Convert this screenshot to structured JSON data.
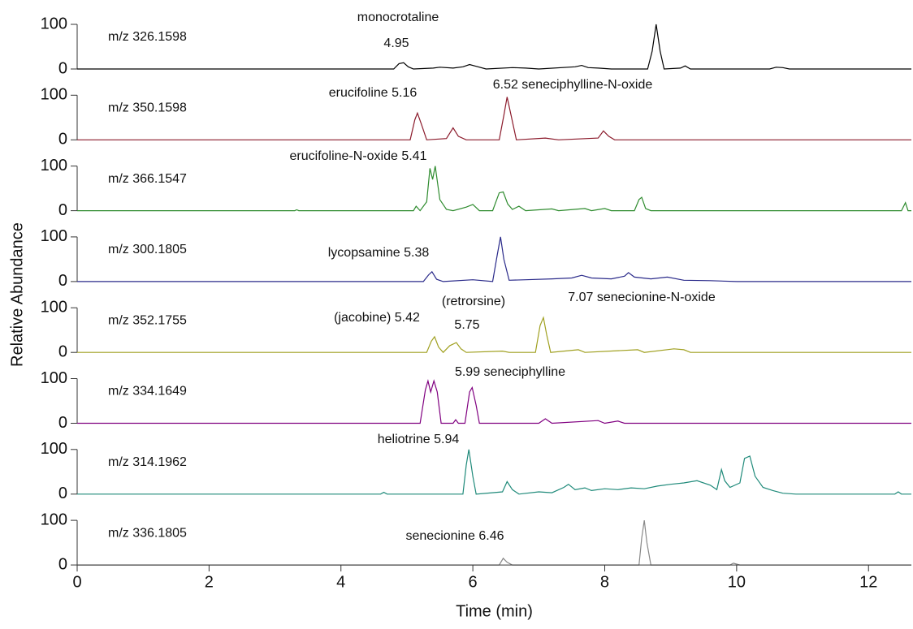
{
  "chart_data": [
    {
      "type": "line",
      "label": "m/z 326.1598",
      "color": "#000000",
      "ylabel": "Relative Abundance",
      "annotations": [
        "monocrotaline",
        "4.95"
      ],
      "xlim": [
        0,
        12.65
      ],
      "ylim": [
        0,
        100
      ],
      "yticks": [
        0,
        100
      ],
      "x": [
        0,
        4.8,
        4.88,
        4.95,
        5.02,
        5.1,
        5.4,
        5.5,
        5.7,
        5.85,
        5.95,
        6.05,
        6.2,
        6.6,
        6.8,
        7.0,
        7.55,
        7.65,
        7.75,
        7.9,
        8.1,
        8.65,
        8.72,
        8.78,
        8.84,
        8.9,
        9.15,
        9.22,
        9.3,
        10.5,
        10.6,
        10.7,
        10.8,
        12.65
      ],
      "values": [
        0,
        0,
        12,
        14,
        5,
        0,
        2,
        4,
        2,
        5,
        10,
        6,
        0,
        3,
        2,
        0,
        5,
        8,
        3,
        2,
        0,
        0,
        40,
        100,
        40,
        0,
        2,
        7,
        0,
        0,
        4,
        3,
        0,
        0
      ]
    },
    {
      "type": "line",
      "label": "m/z 350.1598",
      "color": "#8b1a2b",
      "annotations": [
        "erucifoline 5.16",
        "6.52  seneciphylline-N-oxide"
      ],
      "xlim": [
        0,
        12.65
      ],
      "ylim": [
        0,
        100
      ],
      "yticks": [
        0,
        100
      ],
      "x": [
        0,
        5.05,
        5.12,
        5.16,
        5.22,
        5.3,
        5.6,
        5.7,
        5.78,
        5.9,
        6.4,
        6.47,
        6.52,
        6.58,
        6.66,
        7.1,
        7.3,
        7.9,
        7.98,
        8.06,
        8.15,
        12.65
      ],
      "values": [
        0,
        0,
        45,
        60,
        35,
        0,
        3,
        27,
        8,
        0,
        0,
        55,
        96,
        55,
        0,
        4,
        0,
        4,
        20,
        8,
        0,
        0
      ]
    },
    {
      "type": "line",
      "label": "m/z 366.1547",
      "color": "#2e8b2e",
      "annotations": [
        "erucifoline-N-oxide 5.41"
      ],
      "xlim": [
        0,
        12.65
      ],
      "ylim": [
        0,
        100
      ],
      "yticks": [
        0,
        100
      ],
      "x": [
        0,
        3.3,
        3.33,
        3.36,
        5.1,
        5.14,
        5.2,
        5.3,
        5.35,
        5.39,
        5.43,
        5.5,
        5.6,
        5.7,
        5.9,
        6.0,
        6.1,
        6.3,
        6.4,
        6.46,
        6.53,
        6.6,
        6.7,
        6.8,
        7.2,
        7.3,
        7.7,
        7.8,
        8.0,
        8.1,
        8.45,
        8.52,
        8.56,
        8.62,
        8.7,
        12.5,
        12.56,
        12.6,
        12.65
      ],
      "values": [
        0,
        0,
        2,
        0,
        0,
        10,
        0,
        20,
        95,
        70,
        100,
        25,
        3,
        0,
        8,
        14,
        0,
        0,
        40,
        42,
        15,
        3,
        10,
        0,
        4,
        0,
        5,
        0,
        5,
        0,
        0,
        25,
        30,
        5,
        0,
        0,
        18,
        0,
        0
      ]
    },
    {
      "type": "line",
      "label": "m/z 300.1805",
      "color": "#2a2a8a",
      "annotations": [
        "lycopsamine 5.38"
      ],
      "xlim": [
        0,
        12.65
      ],
      "ylim": [
        0,
        100
      ],
      "yticks": [
        0,
        100
      ],
      "x": [
        0,
        5.25,
        5.33,
        5.38,
        5.45,
        5.55,
        6.0,
        6.3,
        6.37,
        6.42,
        6.47,
        6.55,
        6.8,
        7.2,
        7.5,
        7.65,
        7.8,
        8.1,
        8.3,
        8.36,
        8.45,
        8.7,
        8.95,
        9.2,
        9.6,
        10.0,
        12.65
      ],
      "values": [
        0,
        0,
        15,
        22,
        5,
        0,
        4,
        0,
        60,
        100,
        50,
        3,
        4,
        6,
        8,
        14,
        8,
        6,
        12,
        20,
        10,
        6,
        10,
        3,
        2,
        0,
        0
      ]
    },
    {
      "type": "line",
      "label": "m/z 352.1755",
      "color": "#a0a020",
      "annotations": [
        "(retrorsine)",
        "7.07  senecionine-N-oxide",
        "(jacobine)  5.42",
        "5.75"
      ],
      "xlim": [
        0,
        12.65
      ],
      "ylim": [
        0,
        100
      ],
      "yticks": [
        0,
        100
      ],
      "x": [
        0,
        5.3,
        5.37,
        5.42,
        5.48,
        5.55,
        5.65,
        5.75,
        5.82,
        5.9,
        6.45,
        6.55,
        6.95,
        7.02,
        7.07,
        7.12,
        7.18,
        7.6,
        7.7,
        8.5,
        8.6,
        9.05,
        9.2,
        9.3,
        12.65
      ],
      "values": [
        0,
        0,
        25,
        35,
        12,
        0,
        15,
        22,
        8,
        0,
        3,
        0,
        0,
        60,
        78,
        40,
        0,
        6,
        0,
        6,
        0,
        8,
        6,
        0,
        0
      ]
    },
    {
      "type": "line",
      "label": "m/z 334.1649",
      "color": "#800080",
      "annotations": [
        "5.99  seneciphylline"
      ],
      "xlim": [
        0,
        12.65
      ],
      "ylim": [
        0,
        100
      ],
      "yticks": [
        0,
        100
      ],
      "x": [
        0,
        5.2,
        5.28,
        5.32,
        5.36,
        5.41,
        5.46,
        5.52,
        5.7,
        5.74,
        5.78,
        5.88,
        5.95,
        5.99,
        6.05,
        6.1,
        7.0,
        7.1,
        7.2,
        7.9,
        8.0,
        8.2,
        8.3,
        12.65
      ],
      "values": [
        0,
        0,
        75,
        95,
        70,
        95,
        70,
        0,
        0,
        8,
        0,
        0,
        70,
        80,
        40,
        0,
        0,
        10,
        0,
        6,
        0,
        5,
        0,
        0
      ]
    },
    {
      "type": "line",
      "label": "m/z 314.1962",
      "color": "#1f8a7a",
      "annotations": [
        "heliotrine  5.94"
      ],
      "xlim": [
        0,
        12.65
      ],
      "ylim": [
        0,
        100
      ],
      "yticks": [
        0,
        100
      ],
      "x": [
        0,
        4.6,
        4.65,
        4.7,
        5.85,
        5.9,
        5.94,
        6.0,
        6.05,
        6.45,
        6.52,
        6.6,
        6.7,
        7.0,
        7.2,
        7.38,
        7.45,
        7.55,
        7.7,
        7.8,
        8.0,
        8.2,
        8.4,
        8.6,
        8.8,
        9.0,
        9.2,
        9.4,
        9.6,
        9.7,
        9.77,
        9.82,
        9.9,
        10.05,
        10.12,
        10.2,
        10.28,
        10.4,
        10.55,
        10.7,
        10.9,
        12.4,
        12.45,
        12.5,
        12.65
      ],
      "values": [
        0,
        0,
        4,
        0,
        0,
        65,
        100,
        40,
        0,
        5,
        28,
        10,
        0,
        5,
        3,
        15,
        22,
        10,
        14,
        8,
        12,
        10,
        14,
        12,
        18,
        22,
        25,
        30,
        20,
        10,
        55,
        30,
        15,
        25,
        80,
        85,
        40,
        15,
        8,
        2,
        0,
        0,
        5,
        0,
        0
      ]
    },
    {
      "type": "line",
      "label": "m/z 336.1805",
      "color": "#888888",
      "annotations": [
        "senecionine  6.46"
      ],
      "xlabel": "Time (min)",
      "xlim": [
        0,
        12.65
      ],
      "ylim": [
        0,
        100
      ],
      "yticks": [
        0,
        100
      ],
      "xticks": [
        0,
        2,
        4,
        6,
        8,
        10,
        12
      ],
      "x": [
        0,
        6.4,
        6.46,
        6.52,
        6.6,
        8.52,
        8.56,
        8.6,
        8.64,
        8.7,
        9.9,
        9.95,
        10.05,
        12.65
      ],
      "values": [
        0,
        0,
        15,
        6,
        0,
        0,
        60,
        100,
        50,
        0,
        0,
        4,
        0,
        0
      ]
    }
  ]
}
